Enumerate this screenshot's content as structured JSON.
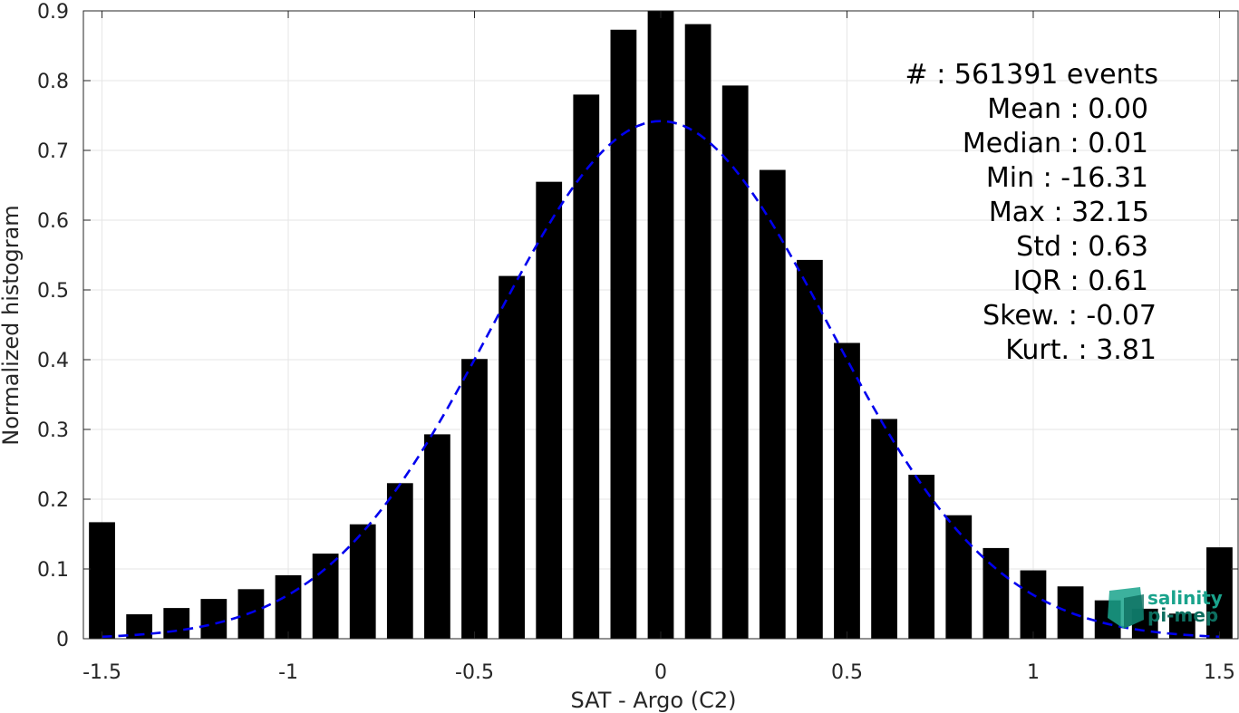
{
  "chart_data": {
    "type": "bar",
    "xlabel": "SAT - Argo (C2)",
    "ylabel": "Normalized histogram",
    "xlim": [
      -1.55,
      1.55
    ],
    "ylim": [
      0,
      0.9
    ],
    "xticks": [
      -1.5,
      -1,
      -0.5,
      0,
      0.5,
      1,
      1.5
    ],
    "xtick_labels": [
      "-1.5",
      "-1",
      "-0.5",
      "0",
      "0.5",
      "1",
      "1.5"
    ],
    "yticks": [
      0,
      0.1,
      0.2,
      0.3,
      0.4,
      0.5,
      0.6,
      0.7,
      0.8,
      0.9
    ],
    "ytick_labels": [
      "0",
      "0.1",
      "0.2",
      "0.3",
      "0.4",
      "0.5",
      "0.6",
      "0.7",
      "0.8",
      "0.9"
    ],
    "grid": true,
    "bar_color": "#000000",
    "bar_width": 0.07,
    "bars": {
      "x": [
        -1.5,
        -1.4,
        -1.3,
        -1.2,
        -1.1,
        -1.0,
        -0.9,
        -0.8,
        -0.7,
        -0.6,
        -0.5,
        -0.4,
        -0.3,
        -0.2,
        -0.1,
        0.0,
        0.1,
        0.2,
        0.3,
        0.4,
        0.5,
        0.6,
        0.7,
        0.8,
        0.9,
        1.0,
        1.1,
        1.2,
        1.3,
        1.4,
        1.5
      ],
      "y": [
        0.167,
        0.035,
        0.044,
        0.057,
        0.071,
        0.091,
        0.122,
        0.164,
        0.223,
        0.293,
        0.401,
        0.52,
        0.655,
        0.78,
        0.873,
        0.9,
        0.881,
        0.793,
        0.672,
        0.543,
        0.424,
        0.315,
        0.235,
        0.177,
        0.13,
        0.098,
        0.075,
        0.055,
        0.043,
        0.036,
        0.131
      ]
    },
    "fit_curve": {
      "type": "gaussian",
      "color": "#0000ee",
      "style": "dashed",
      "mean": 0.0,
      "std": 0.45,
      "peak": 0.742,
      "x_range": [
        -1.5,
        1.5
      ]
    },
    "stats": [
      "#  : 561391 events",
      "Mean : 0.00",
      "Median : 0.01",
      "Min : -16.31",
      "Max : 32.15",
      "Std : 0.63",
      "IQR : 0.61",
      "Skew. : -0.07",
      "Kurt. : 3.81"
    ]
  },
  "logo": {
    "line1": "salinity",
    "line2": "pi-mep",
    "color": "#1aa38c"
  }
}
